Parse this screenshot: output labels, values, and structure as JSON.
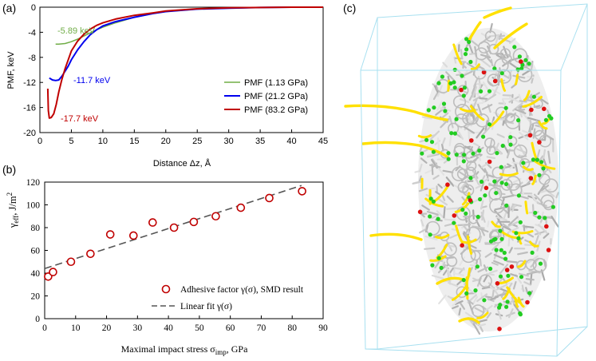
{
  "panel_labels": {
    "a": "(a)",
    "b": "(b)",
    "c": "(c)"
  },
  "colors": {
    "series_1": "#70ad47",
    "series_2": "#0000ee",
    "series_3": "#c00000",
    "fit_line": "#555555",
    "marker": "#c00000",
    "box": "#a8e0f0",
    "carbon": "#cfcfcf",
    "chains": "#ffe000",
    "green_atoms": "#22cc22",
    "red_atoms": "#dd1111"
  },
  "chart_data": [
    {
      "type": "line",
      "panel": "(a)",
      "xlabel": "Distance Δz, Å",
      "ylabel": "PMF, keV",
      "xlim": [
        0,
        45
      ],
      "ylim": [
        -20,
        0
      ],
      "xticks": [
        0,
        5,
        10,
        15,
        20,
        25,
        30,
        35,
        40,
        45
      ],
      "yticks": [
        0,
        -4,
        -8,
        -12,
        -16,
        -20
      ],
      "ytick_labels": [
        "0",
        "-4",
        "-8",
        "-12",
        "-16",
        "-20"
      ],
      "legend_position": "lower-right",
      "series": [
        {
          "name": "PMF (1.13 GPa)",
          "color": "#70ad47",
          "x": [
            2.5,
            3,
            4,
            5,
            6,
            7,
            8,
            9,
            10,
            12,
            15,
            18,
            20,
            25,
            30,
            35,
            40,
            45
          ],
          "y": [
            -5.9,
            -5.89,
            -5.8,
            -5.5,
            -5.1,
            -4.6,
            -4.1,
            -3.6,
            -3.2,
            -2.5,
            -1.6,
            -1.0,
            -0.7,
            -0.3,
            -0.15,
            -0.05,
            0,
            0
          ]
        },
        {
          "name": "PMF (21.2 GPa)",
          "color": "#0000ee",
          "x": [
            1.5,
            2,
            2.5,
            3,
            3.5,
            4,
            4.5,
            5,
            6,
            7,
            8,
            9,
            10,
            12,
            15,
            18,
            20,
            25,
            30,
            35,
            40,
            45
          ],
          "y": [
            -11.3,
            -11.6,
            -11.7,
            -11.6,
            -11.0,
            -10.2,
            -9.4,
            -8.4,
            -6.8,
            -5.5,
            -4.4,
            -3.6,
            -3.0,
            -2.3,
            -1.6,
            -1.0,
            -0.7,
            -0.3,
            -0.15,
            -0.05,
            0,
            0
          ]
        },
        {
          "name": "PMF (83.2 GPa)",
          "color": "#c00000",
          "x": [
            1.25,
            1.35,
            1.5,
            1.8,
            2.2,
            2.6,
            3,
            3.5,
            4,
            4.5,
            5,
            6,
            7,
            8,
            9,
            10,
            12,
            15,
            18,
            20,
            25,
            30,
            35,
            40,
            45
          ],
          "y": [
            -13.0,
            -16.5,
            -17.7,
            -17.6,
            -17.0,
            -15.5,
            -13.5,
            -11.5,
            -9.8,
            -8.4,
            -7.0,
            -5.4,
            -4.3,
            -3.5,
            -2.9,
            -2.5,
            -1.9,
            -1.3,
            -0.9,
            -0.6,
            -0.25,
            -0.1,
            -0.05,
            0,
            0
          ]
        }
      ],
      "annotations": [
        {
          "text": "-5.89 keV",
          "color": "#70ad47"
        },
        {
          "text": "-11.7 keV",
          "color": "#0000ee"
        },
        {
          "text": "-17.7 keV",
          "color": "#c00000"
        }
      ]
    },
    {
      "type": "scatter",
      "panel": "(b)",
      "xlabel": "Maximal  impact  stress  σimp, GPa",
      "xlabel_main": "Maximal  impact  stress  σ",
      "xlabel_sub": "imp",
      "xlabel_tail": ", GPa",
      "ylabel": "γeff, J/m2",
      "ylabel_main": "γ",
      "ylabel_sub": "eff",
      "ylabel_tail": ", J/m",
      "ylabel_sup": "2",
      "xlim": [
        0,
        90
      ],
      "ylim": [
        0,
        120
      ],
      "xticks": [
        0,
        10,
        20,
        30,
        40,
        50,
        60,
        70,
        80,
        90
      ],
      "yticks": [
        0,
        20,
        40,
        60,
        80,
        100,
        120
      ],
      "legend_position": "lower-right",
      "series": [
        {
          "name": "Adhesive factor γ(σ), SMD result",
          "x": [
            1.13,
            2.7,
            8.5,
            14.8,
            21.2,
            28.7,
            34.9,
            41.8,
            48.2,
            55.3,
            63.4,
            72.6,
            83.2
          ],
          "y": [
            37,
            41,
            50,
            57,
            74,
            73,
            84.5,
            80,
            85,
            90,
            97.5,
            106,
            112
          ]
        }
      ],
      "fit": {
        "name": "Linear fit γ(σ)",
        "x": [
          0,
          83
        ],
        "y": [
          44,
          117
        ]
      }
    }
  ]
}
